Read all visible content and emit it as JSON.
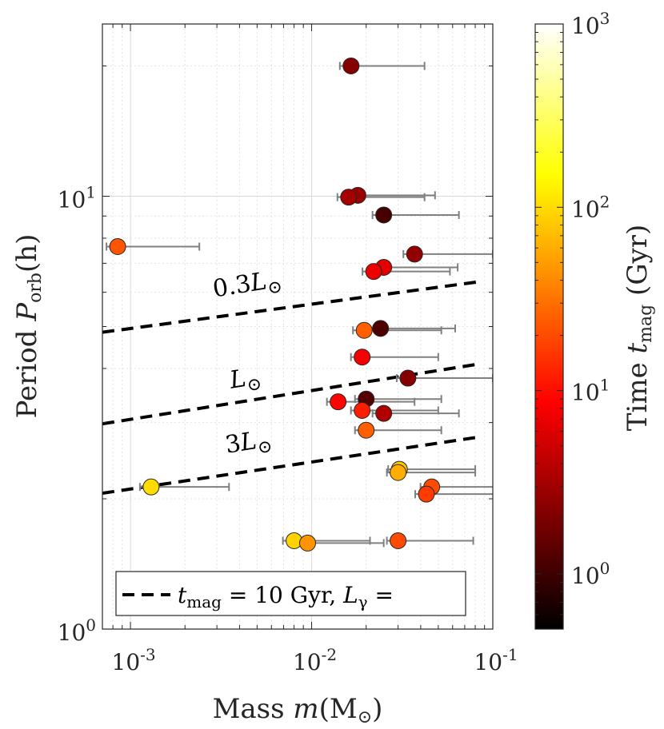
{
  "chart_data": {
    "type": "scatter",
    "x_scale": "log",
    "y_scale": "log",
    "xlim": [
      0.0007,
      0.1
    ],
    "ylim": [
      1,
      25
    ],
    "grid": true,
    "xlabel": {
      "pre": "Mass ",
      "var": "m",
      "post": "(M",
      "sub": "⊙",
      "close": ")"
    },
    "ylabel": {
      "pre": "Period ",
      "var": "P",
      "sub": "orb",
      "post": "(h)"
    },
    "x_ticks": [
      {
        "value": 0.001,
        "base": "10",
        "exp": "-3"
      },
      {
        "value": 0.01,
        "base": "10",
        "exp": "-2"
      },
      {
        "value": 0.1,
        "base": "10",
        "exp": "-1"
      }
    ],
    "y_ticks": [
      {
        "value": 1,
        "base": "10",
        "exp": "0"
      },
      {
        "value": 10,
        "base": "10",
        "exp": "1"
      }
    ],
    "colorbar": {
      "colormap": "hot",
      "scale": "log",
      "range": [
        0.5,
        1000
      ],
      "label_pre": "Time ",
      "label_var": "t",
      "label_sub": "mag",
      "label_post": " (Gyr)",
      "ticks": [
        {
          "value": 1,
          "base": "10",
          "exp": "0"
        },
        {
          "value": 10,
          "base": "10",
          "exp": "1"
        },
        {
          "value": 100,
          "base": "10",
          "exp": "2"
        },
        {
          "value": 1000,
          "base": "10",
          "exp": "3"
        }
      ]
    },
    "lines": [
      {
        "label_coef": "0.3",
        "label_sym": "L",
        "label_sub": "⊙",
        "x": [
          0.0007,
          0.085
        ],
        "y": [
          4.85,
          6.35
        ],
        "label_x": 0.0029,
        "label_y": 5.85
      },
      {
        "label_coef": "",
        "label_sym": "L",
        "label_sub": "⊙",
        "x": [
          0.0007,
          0.085
        ],
        "y": [
          2.98,
          4.1
        ],
        "label_x": 0.0036,
        "label_y": 3.6
      },
      {
        "label_coef": "3",
        "label_sym": "L",
        "label_sub": "⊙",
        "x": [
          0.0007,
          0.085
        ],
        "y": [
          2.06,
          2.78
        ],
        "label_x": 0.0034,
        "label_y": 2.55
      }
    ],
    "points": [
      {
        "m": 0.0165,
        "m_max": 0.042,
        "P": 20.0,
        "t": 2.2
      },
      {
        "m": 0.018,
        "m_max": 0.048,
        "P": 10.05,
        "t": 2.8
      },
      {
        "m": 0.016,
        "m_max": 0.042,
        "P": 9.95,
        "t": 3.2
      },
      {
        "m": 0.025,
        "m_max": 0.065,
        "P": 9.05,
        "t": 1.1
      },
      {
        "m": 0.00085,
        "m_max": 0.0024,
        "P": 7.65,
        "t": 22
      },
      {
        "m": 0.037,
        "m_max": 0.1,
        "P": 7.35,
        "t": 2.6
      },
      {
        "m": 0.025,
        "m_max": 0.064,
        "P": 6.85,
        "t": 6.5
      },
      {
        "m": 0.022,
        "m_max": 0.058,
        "P": 6.7,
        "t": 7
      },
      {
        "m": 0.024,
        "m_max": 0.062,
        "P": 4.95,
        "t": 1.2
      },
      {
        "m": 0.0195,
        "m_max": 0.052,
        "P": 4.9,
        "t": 25
      },
      {
        "m": 0.019,
        "m_max": 0.05,
        "P": 4.25,
        "t": 8
      },
      {
        "m": 0.034,
        "m_max": 0.1,
        "P": 3.8,
        "t": 2.2
      },
      {
        "m": 0.02,
        "m_max": 0.052,
        "P": 3.4,
        "t": 1.3
      },
      {
        "m": 0.014,
        "m_max": 0.037,
        "P": 3.35,
        "t": 9
      },
      {
        "m": 0.019,
        "m_max": 0.05,
        "P": 3.2,
        "t": 12
      },
      {
        "m": 0.025,
        "m_max": 0.065,
        "P": 3.15,
        "t": 3.5
      },
      {
        "m": 0.02,
        "m_max": 0.052,
        "P": 2.88,
        "t": 25
      },
      {
        "m": 0.0305,
        "m_max": 0.08,
        "P": 2.34,
        "t": 80
      },
      {
        "m": 0.03,
        "m_max": 0.08,
        "P": 2.3,
        "t": 60
      },
      {
        "m": 0.0013,
        "m_max": 0.0035,
        "P": 2.13,
        "t": 100
      },
      {
        "m": 0.046,
        "m_max": 0.12,
        "P": 2.13,
        "t": 20
      },
      {
        "m": 0.043,
        "m_max": 0.12,
        "P": 2.05,
        "t": 17
      },
      {
        "m": 0.008,
        "m_max": 0.021,
        "P": 1.6,
        "t": 90
      },
      {
        "m": 0.0095,
        "m_max": 0.025,
        "P": 1.58,
        "t": 45
      },
      {
        "m": 0.03,
        "m_max": 0.078,
        "P": 1.6,
        "t": 20
      }
    ],
    "legend": {
      "placement": "bottom",
      "var": "t",
      "sub": "mag",
      "value_text": " = 10 Gyr, ",
      "var2": "L",
      "sub2": "γ",
      "tail": " ="
    }
  }
}
